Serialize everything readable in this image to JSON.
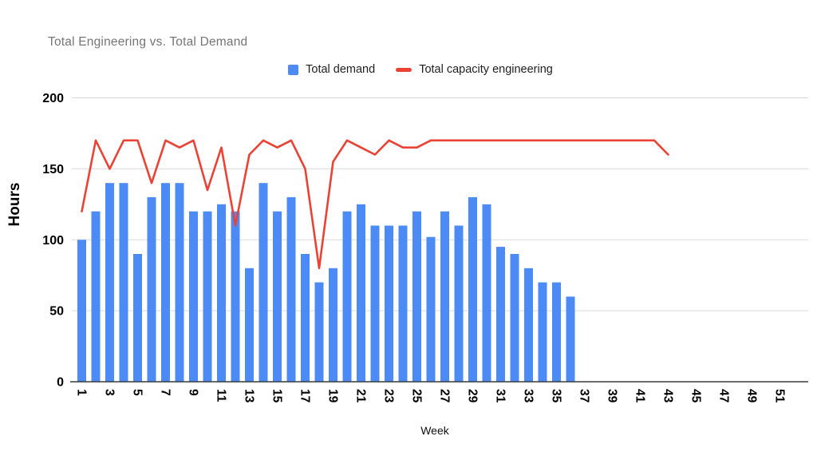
{
  "chart_data": {
    "type": "combo-bar-line",
    "title": "Total Engineering vs. Total Demand",
    "xlabel": "Week",
    "ylabel": "Hours",
    "ylim": [
      0,
      200
    ],
    "yticks": [
      0,
      50,
      100,
      150,
      200
    ],
    "xticks": [
      1,
      3,
      5,
      7,
      9,
      11,
      13,
      15,
      17,
      19,
      21,
      23,
      25,
      27,
      29,
      31,
      33,
      35,
      37,
      39,
      41,
      43,
      45,
      47,
      49,
      51
    ],
    "x_range_weeks": [
      1,
      52
    ],
    "grid": "horizontal",
    "legend_position": "top",
    "series": [
      {
        "name": "Total demand",
        "chart_type": "bar",
        "color": "#4C8BF5",
        "x": [
          1,
          2,
          3,
          4,
          5,
          6,
          7,
          8,
          9,
          10,
          11,
          12,
          13,
          14,
          15,
          16,
          17,
          18,
          19,
          20,
          21,
          22,
          23,
          24,
          25,
          26,
          27,
          28,
          29,
          30,
          31,
          32,
          33,
          34,
          35,
          36
        ],
        "values": [
          100,
          120,
          140,
          140,
          90,
          130,
          140,
          140,
          120,
          120,
          125,
          120,
          80,
          140,
          120,
          130,
          90,
          70,
          80,
          120,
          125,
          110,
          110,
          110,
          120,
          102,
          120,
          110,
          130,
          125,
          95,
          90,
          80,
          70,
          70,
          60
        ]
      },
      {
        "name": "Total capacity engineering",
        "chart_type": "line",
        "color": "#EA4335",
        "x": [
          1,
          2,
          3,
          4,
          5,
          6,
          7,
          8,
          9,
          10,
          11,
          12,
          13,
          14,
          15,
          16,
          17,
          18,
          19,
          20,
          21,
          22,
          23,
          24,
          25,
          26,
          27,
          28,
          29,
          30,
          31,
          32,
          33,
          34,
          35,
          36,
          37,
          38,
          39,
          40,
          41,
          42,
          43
        ],
        "values": [
          120,
          170,
          150,
          170,
          170,
          140,
          170,
          165,
          170,
          135,
          165,
          110,
          160,
          170,
          165,
          170,
          150,
          80,
          155,
          170,
          165,
          160,
          170,
          165,
          165,
          170,
          170,
          170,
          170,
          170,
          170,
          170,
          170,
          170,
          170,
          170,
          170,
          170,
          170,
          170,
          170,
          170,
          160
        ]
      }
    ]
  },
  "colors": {
    "bar_blue": "#4C8BF5",
    "line_red": "#EA4335",
    "title_gray": "#757575",
    "axis_text": "#000000",
    "gridline": "#DADADA",
    "axis_line": "#3C3C3C",
    "background": "#FFFFFF"
  }
}
